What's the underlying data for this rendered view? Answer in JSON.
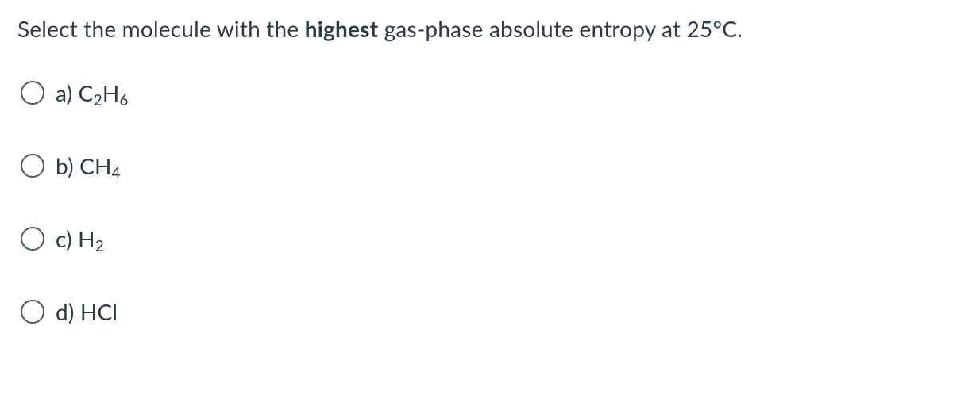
{
  "question": {
    "prefix": "Select the molecule with the ",
    "bold": "highest",
    "suffix": " gas-phase absolute entropy at 25°C."
  },
  "options": [
    {
      "prefix": "a) C",
      "sub1": "2",
      "mid": "H",
      "sub2": "6",
      "tail": ""
    },
    {
      "prefix": "b) CH",
      "sub1": "4",
      "mid": "",
      "sub2": "",
      "tail": ""
    },
    {
      "prefix": "c) H",
      "sub1": "2",
      "mid": "",
      "sub2": "",
      "tail": ""
    },
    {
      "prefix": "d) HCl",
      "sub1": "",
      "mid": "",
      "sub2": "",
      "tail": ""
    }
  ],
  "colors": {
    "text": "#2d3b45",
    "background": "#ffffff"
  }
}
